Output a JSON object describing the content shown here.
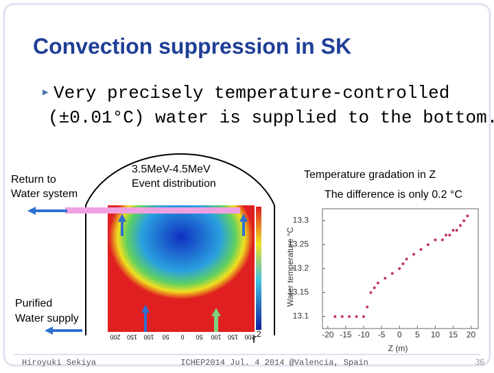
{
  "title": "Convection suppression in SK",
  "bullet": [
    "Very precisely temperature-controlled",
    "(±0.01°C) water is supplied to the bottom."
  ],
  "labels": {
    "return": [
      "Return to",
      "Water system"
    ],
    "event": [
      "3.5MeV-4.5MeV",
      "Event distribution"
    ],
    "gradation": "Temperature gradation in Z",
    "difference": "The difference is only 0.2 °C",
    "supply": [
      "Purified",
      "Water supply"
    ],
    "r": "r",
    "r_exp": "2"
  },
  "heatmap_xticks": [
    "200",
    "150",
    "100",
    "50",
    "0",
    "50",
    "100",
    "150",
    "200"
  ],
  "footer": {
    "author": "Hiroyuki Sekiya",
    "event": "ICHEP2014 Jul. 4 2014 @Valencia, Spain",
    "page": "36"
  },
  "chart_data": {
    "type": "scatter",
    "xlabel": "Z (m)",
    "ylabel": "Water temperature °C",
    "color": "#c0306a",
    "xlim": [
      -21.5,
      22
    ],
    "ylim": [
      13.075,
      13.325
    ],
    "xticks": [
      -20,
      -15,
      -10,
      -5,
      0,
      5,
      10,
      15,
      20
    ],
    "yticks": [
      13.1,
      13.15,
      13.2,
      13.25,
      13.3
    ],
    "x": [
      -18,
      -16,
      -14,
      -12,
      -10,
      -9,
      -8,
      -7,
      -6,
      -4,
      -2,
      0,
      1,
      2,
      4,
      6,
      8,
      10,
      12,
      13,
      14,
      15,
      16,
      17,
      18,
      19
    ],
    "values": [
      13.1,
      13.1,
      13.1,
      13.1,
      13.1,
      13.12,
      13.15,
      13.16,
      13.17,
      13.18,
      13.19,
      13.2,
      13.21,
      13.22,
      13.23,
      13.24,
      13.25,
      13.26,
      13.26,
      13.27,
      13.27,
      13.28,
      13.28,
      13.29,
      13.3,
      13.31
    ]
  }
}
